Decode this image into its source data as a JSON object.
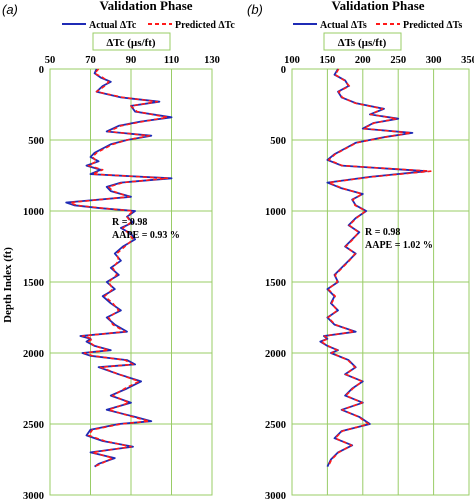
{
  "figure": {
    "ylabel": "Depth Index (ft)"
  },
  "chart_data": [
    {
      "type": "line",
      "panel": "(a)",
      "title": "Validation Phase",
      "xlabel": "ΔTc (µs/ft)",
      "xlim": [
        50,
        130
      ],
      "xticks": [
        50,
        70,
        90,
        110,
        130
      ],
      "ylim": [
        0,
        3000
      ],
      "yticks": [
        0,
        500,
        1000,
        1500,
        2000,
        2500,
        3000
      ],
      "y_inverted": true,
      "grid": true,
      "legend_position": "top",
      "annotation": [
        "R = 0.98",
        "AAPE = 0.93 %"
      ],
      "colors": {
        "actual": "#1f2bb5",
        "predicted": "#ff1a1a",
        "grid": "#99cc66"
      },
      "series": [
        {
          "name": "Actual ΔTc",
          "style": "solid",
          "y": [
            0,
            30,
            60,
            90,
            120,
            160,
            200,
            230,
            260,
            300,
            340,
            370,
            400,
            440,
            470,
            500,
            530,
            560,
            590,
            620,
            650,
            680,
            710,
            740,
            770,
            800,
            830,
            860,
            900,
            940,
            960,
            980,
            1000,
            1040,
            1080,
            1120,
            1160,
            1200,
            1250,
            1300,
            1350,
            1400,
            1450,
            1500,
            1550,
            1600,
            1650,
            1700,
            1750,
            1800,
            1850,
            1880,
            1900,
            1920,
            1950,
            1980,
            2000,
            2020,
            2050,
            2080,
            2100,
            2150,
            2200,
            2250,
            2300,
            2350,
            2400,
            2450,
            2480,
            2500,
            2540,
            2580,
            2620,
            2660,
            2700,
            2740,
            2780,
            2800
          ],
          "values": [
            73,
            72,
            75,
            80,
            76,
            73,
            85,
            104,
            90,
            92,
            110,
            95,
            84,
            78,
            100,
            88,
            80,
            76,
            72,
            70,
            74,
            68,
            75,
            70,
            110,
            85,
            78,
            80,
            90,
            58,
            62,
            75,
            92,
            88,
            91,
            85,
            90,
            92,
            86,
            82,
            85,
            80,
            84,
            78,
            82,
            76,
            80,
            85,
            78,
            82,
            88,
            65,
            70,
            68,
            72,
            80,
            66,
            70,
            88,
            92,
            74,
            84,
            95,
            88,
            80,
            90,
            78,
            92,
            100,
            84,
            70,
            68,
            76,
            91,
            70,
            82,
            74,
            72
          ]
        },
        {
          "name": "Predicted ΔTc",
          "style": "dashed",
          "y": [
            0,
            30,
            60,
            90,
            120,
            160,
            200,
            230,
            260,
            300,
            340,
            370,
            400,
            440,
            470,
            500,
            530,
            560,
            590,
            620,
            650,
            680,
            710,
            740,
            770,
            800,
            830,
            860,
            900,
            940,
            960,
            980,
            1000,
            1040,
            1080,
            1120,
            1160,
            1200,
            1250,
            1300,
            1350,
            1400,
            1450,
            1500,
            1550,
            1600,
            1650,
            1700,
            1750,
            1800,
            1850,
            1880,
            1900,
            1920,
            1950,
            1980,
            2000,
            2020,
            2050,
            2080,
            2100,
            2150,
            2200,
            2250,
            2300,
            2350,
            2400,
            2450,
            2480,
            2500,
            2540,
            2580,
            2620,
            2660,
            2700,
            2740,
            2780,
            2800
          ],
          "values": [
            74,
            72,
            76,
            79,
            77,
            73,
            86,
            103,
            90,
            93,
            108,
            96,
            85,
            79,
            99,
            88,
            81,
            77,
            73,
            71,
            73,
            69,
            76,
            71,
            108,
            86,
            79,
            81,
            89,
            60,
            63,
            76,
            91,
            88,
            90,
            86,
            89,
            91,
            87,
            83,
            84,
            81,
            83,
            79,
            81,
            77,
            81,
            84,
            79,
            81,
            87,
            66,
            71,
            69,
            72,
            79,
            67,
            71,
            87,
            91,
            75,
            84,
            94,
            87,
            81,
            89,
            79,
            91,
            99,
            85,
            71,
            69,
            77,
            90,
            71,
            81,
            75,
            72
          ]
        }
      ]
    },
    {
      "type": "line",
      "panel": "(b)",
      "title": "Validation Phase",
      "xlabel": "ΔTs (µs/ft)",
      "xlim": [
        100,
        350
      ],
      "xticks": [
        100,
        150,
        200,
        250,
        300,
        350
      ],
      "ylim": [
        0,
        3000
      ],
      "yticks": [
        0,
        500,
        1000,
        1500,
        2000,
        2500,
        3000
      ],
      "y_inverted": true,
      "grid": true,
      "legend_position": "top",
      "annotation": [
        "R = 0.98",
        "AAPE = 1.02 %"
      ],
      "colors": {
        "actual": "#1f2bb5",
        "predicted": "#ff1a1a",
        "grid": "#99cc66"
      },
      "series": [
        {
          "name": "Actual ΔTs",
          "style": "solid",
          "y": [
            0,
            40,
            80,
            120,
            160,
            200,
            240,
            280,
            320,
            350,
            380,
            420,
            450,
            480,
            520,
            560,
            600,
            640,
            680,
            720,
            760,
            800,
            840,
            880,
            920,
            960,
            1000,
            1050,
            1100,
            1150,
            1200,
            1250,
            1300,
            1350,
            1400,
            1450,
            1500,
            1550,
            1600,
            1650,
            1700,
            1750,
            1800,
            1850,
            1880,
            1900,
            1920,
            1950,
            1980,
            2000,
            2050,
            2100,
            2150,
            2200,
            2250,
            2300,
            2350,
            2400,
            2450,
            2500,
            2550,
            2600,
            2650,
            2700,
            2750,
            2800
          ],
          "values": [
            165,
            160,
            175,
            180,
            165,
            170,
            190,
            230,
            210,
            250,
            215,
            200,
            270,
            230,
            190,
            175,
            160,
            150,
            170,
            290,
            210,
            150,
            170,
            200,
            185,
            190,
            205,
            190,
            180,
            195,
            185,
            175,
            190,
            180,
            170,
            160,
            165,
            150,
            160,
            155,
            165,
            150,
            160,
            190,
            145,
            150,
            140,
            150,
            165,
            155,
            180,
            190,
            175,
            200,
            185,
            175,
            200,
            170,
            195,
            210,
            170,
            160,
            185,
            165,
            155,
            150
          ]
        },
        {
          "name": "Predicted ΔTs",
          "style": "dashed",
          "y": [
            0,
            40,
            80,
            120,
            160,
            200,
            240,
            280,
            320,
            350,
            380,
            420,
            450,
            480,
            520,
            560,
            600,
            640,
            680,
            720,
            760,
            800,
            840,
            880,
            920,
            960,
            1000,
            1050,
            1100,
            1150,
            1200,
            1250,
            1300,
            1350,
            1400,
            1450,
            1500,
            1550,
            1600,
            1650,
            1700,
            1750,
            1800,
            1850,
            1880,
            1900,
            1920,
            1950,
            1980,
            2000,
            2050,
            2100,
            2150,
            2200,
            2250,
            2300,
            2350,
            2400,
            2450,
            2500,
            2550,
            2600,
            2650,
            2700,
            2750,
            2800
          ],
          "values": [
            166,
            161,
            174,
            181,
            166,
            171,
            189,
            228,
            211,
            248,
            216,
            201,
            268,
            231,
            191,
            176,
            161,
            152,
            171,
            296,
            212,
            152,
            171,
            199,
            186,
            189,
            204,
            191,
            181,
            194,
            186,
            176,
            189,
            181,
            171,
            161,
            164,
            151,
            161,
            156,
            164,
            151,
            161,
            188,
            146,
            151,
            141,
            151,
            164,
            156,
            179,
            189,
            176,
            199,
            186,
            176,
            199,
            171,
            194,
            208,
            171,
            161,
            184,
            166,
            156,
            151
          ]
        }
      ]
    }
  ]
}
